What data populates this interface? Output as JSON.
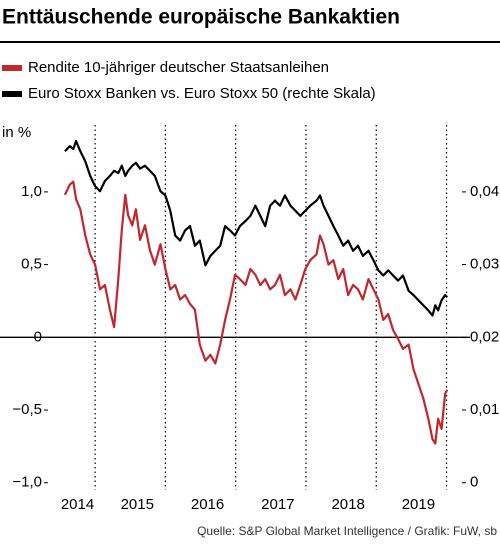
{
  "chart_data": {
    "type": "line",
    "title": "Enttäuschende europäische Bankaktien",
    "y_label": "in %",
    "source": "Quelle: S&P Global Market Intelligence / Grafik: FuW, sb",
    "x": [
      2014.57,
      2014.64,
      2014.69,
      2014.73,
      2014.79,
      2014.86,
      2014.93,
      2015.0,
      2015.07,
      2015.14,
      2015.21,
      2015.27,
      2015.33,
      2015.38,
      2015.43,
      2015.47,
      2015.53,
      2015.58,
      2015.64,
      2015.71,
      2015.78,
      2015.85,
      2015.93,
      2016.0,
      2016.07,
      2016.14,
      2016.21,
      2016.28,
      2016.35,
      2016.42,
      2016.49,
      2016.57,
      2016.64,
      2016.71,
      2016.78,
      2016.85,
      2016.92,
      2016.99,
      2017.06,
      2017.14,
      2017.21,
      2017.28,
      2017.35,
      2017.42,
      2017.49,
      2017.56,
      2017.63,
      2017.7,
      2017.78,
      2017.85,
      2017.92,
      2017.99,
      2018.06,
      2018.15,
      2018.2,
      2018.25,
      2018.32,
      2018.39,
      2018.46,
      2018.53,
      2018.6,
      2018.67,
      2018.74,
      2018.81,
      2018.89,
      2018.96,
      2019.03,
      2019.1,
      2019.17,
      2019.24,
      2019.31,
      2019.38,
      2019.46,
      2019.53,
      2019.6,
      2019.67,
      2019.74,
      2019.8,
      2019.84,
      2019.88,
      2019.93,
      2019.98,
      2020.01
    ],
    "series": [
      {
        "name": "Rendite 10-jähriger deutscher Staatsanleihen",
        "color": "#c1272d",
        "values": [
          0.98,
          1.05,
          1.07,
          0.95,
          0.88,
          0.7,
          0.57,
          0.5,
          0.33,
          0.36,
          0.19,
          0.07,
          0.4,
          0.74,
          0.98,
          0.84,
          0.77,
          0.88,
          0.67,
          0.77,
          0.6,
          0.5,
          0.64,
          0.47,
          0.33,
          0.36,
          0.26,
          0.29,
          0.23,
          0.19,
          -0.05,
          -0.16,
          -0.12,
          -0.18,
          -0.05,
          0.12,
          0.26,
          0.43,
          0.4,
          0.36,
          0.47,
          0.43,
          0.36,
          0.4,
          0.33,
          0.36,
          0.43,
          0.29,
          0.33,
          0.26,
          0.36,
          0.47,
          0.53,
          0.57,
          0.7,
          0.64,
          0.5,
          0.53,
          0.4,
          0.47,
          0.29,
          0.36,
          0.33,
          0.26,
          0.4,
          0.33,
          0.26,
          0.12,
          0.16,
          0.05,
          -0.01,
          -0.08,
          -0.05,
          -0.22,
          -0.32,
          -0.42,
          -0.56,
          -0.7,
          -0.73,
          -0.56,
          -0.63,
          -0.39,
          -0.36
        ]
      },
      {
        "name": "Euro Stoxx Banken vs. Euro Stoxx 50 (rechte Skala)",
        "color": "#000000",
        "axis": "y2",
        "values": [
          0.0456,
          0.0463,
          0.0459,
          0.047,
          0.0456,
          0.0442,
          0.0422,
          0.0408,
          0.0401,
          0.0415,
          0.0422,
          0.0429,
          0.0426,
          0.0436,
          0.0422,
          0.0429,
          0.0436,
          0.044,
          0.0432,
          0.0436,
          0.0429,
          0.0422,
          0.0401,
          0.0395,
          0.0374,
          0.034,
          0.0333,
          0.0347,
          0.0353,
          0.0326,
          0.0333,
          0.0299,
          0.0312,
          0.0319,
          0.0326,
          0.0353,
          0.0347,
          0.034,
          0.0353,
          0.036,
          0.0367,
          0.0381,
          0.0367,
          0.0353,
          0.0381,
          0.0388,
          0.0381,
          0.0395,
          0.0381,
          0.0374,
          0.0367,
          0.0374,
          0.0381,
          0.0388,
          0.0395,
          0.0381,
          0.0367,
          0.0353,
          0.034,
          0.0326,
          0.0333,
          0.0319,
          0.0326,
          0.0312,
          0.0319,
          0.0306,
          0.0292,
          0.0285,
          0.0292,
          0.0285,
          0.0278,
          0.0285,
          0.0264,
          0.0258,
          0.0251,
          0.0244,
          0.0237,
          0.023,
          0.0244,
          0.0237,
          0.0251,
          0.0258,
          0.0255
        ]
      }
    ],
    "xlim": [
      2014.33,
      2020.22
    ],
    "xticks": [
      {
        "value": 2014.75,
        "label": "2014"
      },
      {
        "value": 2015.6,
        "label": "2015"
      },
      {
        "value": 2016.6,
        "label": "2016"
      },
      {
        "value": 2017.6,
        "label": "2017"
      },
      {
        "value": 2018.6,
        "label": "2018"
      },
      {
        "value": 2019.6,
        "label": "2019"
      }
    ],
    "xgrid": [
      2015,
      2016,
      2017,
      2018,
      2019,
      2020
    ],
    "ylim": [
      -1.05,
      1.46
    ],
    "yticks": [
      {
        "value": -1.0,
        "label": "−1,0"
      },
      {
        "value": -0.5,
        "label": "−0,5"
      },
      0,
      {
        "value": 0.5,
        "label": "0,5"
      },
      {
        "value": 1.0,
        "label": "1,0"
      }
    ],
    "y2lim": [
      -0.001,
      0.0492
    ],
    "y2ticks": [
      0,
      {
        "value": 0.01,
        "label": "0,01"
      },
      {
        "value": 0.02,
        "label": "0,02"
      },
      {
        "value": 0.03,
        "label": "0,03"
      },
      {
        "value": 0.04,
        "label": "0,04"
      }
    ]
  }
}
